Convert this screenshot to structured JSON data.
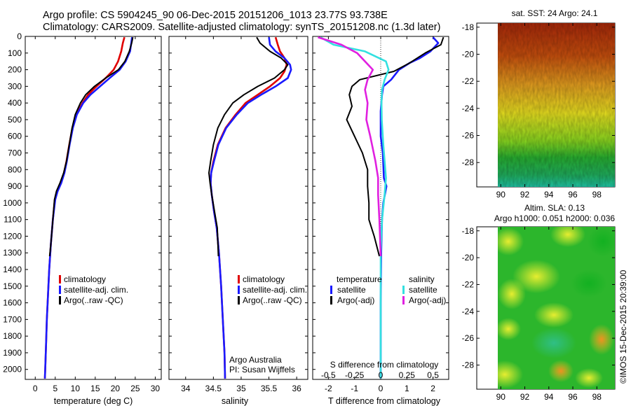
{
  "title_line1": "Argo profile: CS 5904245_90 06-Dec-2015 20151206_1013 23.77S 93.738E",
  "title_line2": "Climatology: CARS2009. Satellite-adjusted climatology: synTS_20151208.nc (1.3d later)",
  "credits": {
    "org": "Argo Australia",
    "pi": "PI: Susan Wijffels",
    "imos": "©IMOS 15-Dec-2015 20:39:00"
  },
  "colors": {
    "climatology": "#e00000",
    "satellite": "#1a1aff",
    "argo": "#000000",
    "salinity_satellite": "#33e0e0",
    "salinity_argo": "#e020e0"
  },
  "chart_data": [
    {
      "type": "line",
      "name": "temperature-profile",
      "xlabel": "temperature (deg C)",
      "ylabel": "",
      "xlim": [
        -2.5,
        31.5
      ],
      "ylim": [
        2060,
        0
      ],
      "xticks": [
        "0",
        "5",
        "10",
        "15",
        "20",
        "25",
        "30"
      ],
      "yticks": [
        "0",
        "100",
        "200",
        "300",
        "400",
        "500",
        "600",
        "700",
        "800",
        "900",
        "1000",
        "1100",
        "1200",
        "1300",
        "1400",
        "1500",
        "1600",
        "1700",
        "1800",
        "1900",
        "2000"
      ],
      "legend": [
        "climatology",
        "satellite-adj. clim.",
        "Argo(..raw -QC)"
      ],
      "series": [
        {
          "name": "climatology",
          "color_key": "climatology",
          "points": [
            [
              22.3,
              5
            ],
            [
              21.9,
              40
            ],
            [
              21.5,
              90
            ],
            [
              20.7,
              150
            ],
            [
              19.6,
              200
            ],
            [
              17.6,
              250
            ],
            [
              15.3,
              300
            ],
            [
              13.2,
              350
            ],
            [
              11.8,
              400
            ],
            [
              10.3,
              470
            ],
            [
              9.3,
              550
            ],
            [
              8.5,
              650
            ],
            [
              7.8,
              750
            ],
            [
              7.2,
              820
            ],
            [
              6.4,
              880
            ],
            [
              5.5,
              930
            ],
            [
              4.9,
              980
            ],
            [
              4.4,
              1100
            ],
            [
              3.9,
              1250
            ],
            [
              3.5,
              1400
            ],
            [
              3.2,
              1550
            ],
            [
              2.9,
              1700
            ],
            [
              2.7,
              1850
            ],
            [
              2.5,
              2000
            ],
            [
              2.4,
              2055
            ]
          ]
        },
        {
          "name": "satellite-adj. clim.",
          "color_key": "satellite",
          "points": [
            [
              24.2,
              5
            ],
            [
              24.0,
              40
            ],
            [
              23.7,
              90
            ],
            [
              22.6,
              150
            ],
            [
              21.1,
              200
            ],
            [
              18.6,
              250
            ],
            [
              16.2,
              300
            ],
            [
              13.8,
              350
            ],
            [
              12.0,
              400
            ],
            [
              10.4,
              470
            ],
            [
              9.4,
              550
            ],
            [
              8.6,
              650
            ],
            [
              7.9,
              750
            ],
            [
              7.3,
              820
            ],
            [
              6.5,
              880
            ],
            [
              5.6,
              930
            ],
            [
              5.0,
              980
            ],
            [
              4.4,
              1100
            ],
            [
              3.9,
              1250
            ],
            [
              3.5,
              1400
            ],
            [
              3.2,
              1550
            ],
            [
              2.9,
              1700
            ],
            [
              2.7,
              1850
            ],
            [
              2.5,
              2000
            ],
            [
              2.4,
              2055
            ]
          ]
        },
        {
          "name": "Argo(..raw -QC)",
          "color_key": "argo",
          "points": [
            [
              24.4,
              5
            ],
            [
              24.1,
              40
            ],
            [
              23.5,
              90
            ],
            [
              22.4,
              150
            ],
            [
              20.8,
              200
            ],
            [
              17.6,
              250
            ],
            [
              14.8,
              300
            ],
            [
              12.6,
              350
            ],
            [
              11.3,
              400
            ],
            [
              10.0,
              470
            ],
            [
              9.2,
              550
            ],
            [
              8.5,
              650
            ],
            [
              7.8,
              750
            ],
            [
              7.1,
              820
            ],
            [
              6.2,
              880
            ],
            [
              5.3,
              930
            ],
            [
              4.8,
              980
            ],
            [
              4.4,
              1100
            ],
            [
              3.9,
              1250
            ],
            [
              3.6,
              1320
            ]
          ]
        }
      ]
    },
    {
      "type": "line",
      "name": "salinity-profile",
      "xlabel": "salinity",
      "xlim": [
        33.7,
        36.2
      ],
      "ylim": [
        2060,
        0
      ],
      "xticks": [
        "34",
        "34.5",
        "35",
        "35.5",
        "36"
      ],
      "legend": [
        "climatology",
        "satellite-adj. clim.",
        "Argo(..raw -QC)"
      ],
      "series": [
        {
          "name": "climatology",
          "color_key": "climatology",
          "points": [
            [
              35.62,
              5
            ],
            [
              35.66,
              50
            ],
            [
              35.7,
              90
            ],
            [
              35.78,
              130
            ],
            [
              35.82,
              170
            ],
            [
              35.78,
              210
            ],
            [
              35.7,
              250
            ],
            [
              35.52,
              300
            ],
            [
              35.3,
              350
            ],
            [
              35.08,
              400
            ],
            [
              34.9,
              470
            ],
            [
              34.72,
              550
            ],
            [
              34.58,
              650
            ],
            [
              34.5,
              750
            ],
            [
              34.46,
              820
            ],
            [
              34.45,
              880
            ],
            [
              34.47,
              950
            ],
            [
              34.51,
              1050
            ],
            [
              34.56,
              1150
            ],
            [
              34.6,
              1300
            ],
            [
              34.64,
              1500
            ],
            [
              34.67,
              1700
            ],
            [
              34.7,
              1900
            ],
            [
              34.71,
              2055
            ]
          ]
        },
        {
          "name": "satellite-adj. clim.",
          "color_key": "satellite",
          "points": [
            [
              35.5,
              5
            ],
            [
              35.52,
              50
            ],
            [
              35.62,
              90
            ],
            [
              35.78,
              130
            ],
            [
              35.88,
              170
            ],
            [
              35.9,
              200
            ],
            [
              35.84,
              250
            ],
            [
              35.62,
              300
            ],
            [
              35.36,
              350
            ],
            [
              35.12,
              400
            ],
            [
              34.92,
              470
            ],
            [
              34.73,
              550
            ],
            [
              34.59,
              650
            ],
            [
              34.51,
              750
            ],
            [
              34.46,
              820
            ],
            [
              34.45,
              880
            ],
            [
              34.47,
              950
            ],
            [
              34.51,
              1050
            ],
            [
              34.56,
              1150
            ],
            [
              34.6,
              1300
            ],
            [
              34.64,
              1500
            ],
            [
              34.67,
              1700
            ],
            [
              34.7,
              1900
            ],
            [
              34.71,
              2055
            ]
          ]
        },
        {
          "name": "Argo(..raw -QC)",
          "color_key": "argo",
          "points": [
            [
              35.28,
              5
            ],
            [
              35.34,
              40
            ],
            [
              35.52,
              90
            ],
            [
              35.72,
              130
            ],
            [
              35.84,
              170
            ],
            [
              35.78,
              200
            ],
            [
              35.6,
              250
            ],
            [
              35.3,
              300
            ],
            [
              35.05,
              350
            ],
            [
              34.85,
              400
            ],
            [
              34.7,
              470
            ],
            [
              34.58,
              550
            ],
            [
              34.5,
              650
            ],
            [
              34.45,
              750
            ],
            [
              34.42,
              820
            ],
            [
              34.44,
              880
            ],
            [
              34.47,
              950
            ],
            [
              34.52,
              1050
            ],
            [
              34.57,
              1150
            ],
            [
              34.59,
              1320
            ]
          ]
        }
      ]
    },
    {
      "type": "line",
      "name": "difference-from-climatology",
      "xlabel": "T difference from climatology",
      "xlabel_top": "S difference from climatology",
      "xlim": [
        -2.6,
        2.6
      ],
      "ylim": [
        2060,
        0
      ],
      "xticks": [
        "-2",
        "-1",
        "0",
        "1",
        "2"
      ],
      "xticks_top": [
        "-0.5",
        "-0.25",
        "0",
        "0.25",
        "0.5"
      ],
      "legend_temperature": "temperature",
      "legend_salinity": "salinity",
      "legend_items": [
        "satellite",
        "Argo(-adj)",
        "satellite",
        "Argo(-adj)"
      ],
      "series": [
        {
          "name": "temperature satellite",
          "color_key": "satellite",
          "points": [
            [
              2.0,
              5
            ],
            [
              2.2,
              40
            ],
            [
              1.9,
              90
            ],
            [
              1.5,
              130
            ],
            [
              1.1,
              160
            ],
            [
              0.7,
              200
            ],
            [
              0.4,
              260
            ],
            [
              0.1,
              300
            ],
            [
              0.05,
              350
            ],
            [
              0.0,
              450
            ],
            [
              0.0,
              600
            ],
            [
              0.08,
              700
            ],
            [
              0.12,
              850
            ],
            [
              0.22,
              900
            ],
            [
              0.1,
              1000
            ],
            [
              0.05,
              1100
            ],
            [
              0.02,
              1300
            ],
            [
              0.0,
              1600
            ],
            [
              0.0,
              2055
            ]
          ]
        },
        {
          "name": "temperature Argo",
          "color_key": "argo",
          "points": [
            [
              2.4,
              5
            ],
            [
              2.3,
              50
            ],
            [
              1.7,
              100
            ],
            [
              1.1,
              160
            ],
            [
              0.5,
              210
            ],
            [
              -0.8,
              260
            ],
            [
              -1.1,
              300
            ],
            [
              -1.2,
              350
            ],
            [
              -1.1,
              420
            ],
            [
              -1.3,
              500
            ],
            [
              -1.0,
              600
            ],
            [
              -0.7,
              700
            ],
            [
              -0.5,
              800
            ],
            [
              -0.5,
              900
            ],
            [
              -0.45,
              1000
            ],
            [
              -0.45,
              1100
            ],
            [
              -0.25,
              1200
            ],
            [
              -0.05,
              1320
            ]
          ]
        },
        {
          "name": "salinity satellite",
          "color_key": "salinity_satellite",
          "points": [
            [
              -2.3,
              5
            ],
            [
              -1.8,
              50
            ],
            [
              -0.6,
              90
            ],
            [
              0.2,
              150
            ],
            [
              0.3,
              200
            ],
            [
              0.15,
              260
            ],
            [
              0.05,
              320
            ],
            [
              0.03,
              400
            ],
            [
              0.04,
              500
            ],
            [
              0.1,
              650
            ],
            [
              0.15,
              750
            ],
            [
              0.2,
              850
            ],
            [
              0.15,
              950
            ],
            [
              0.05,
              1100
            ],
            [
              0.0,
              1300
            ],
            [
              0.0,
              1600
            ],
            [
              0.0,
              2055
            ]
          ]
        },
        {
          "name": "salinity Argo",
          "color_key": "salinity_argo",
          "points": [
            [
              -2.4,
              5
            ],
            [
              -1.5,
              50
            ],
            [
              -0.9,
              100
            ],
            [
              -0.6,
              150
            ],
            [
              -0.3,
              200
            ],
            [
              -0.5,
              260
            ],
            [
              -0.6,
              320
            ],
            [
              -0.5,
              400
            ],
            [
              -0.55,
              500
            ],
            [
              -0.4,
              600
            ],
            [
              -0.2,
              750
            ],
            [
              -0.1,
              850
            ],
            [
              -0.1,
              950
            ],
            [
              -0.05,
              1100
            ],
            [
              0.0,
              1320
            ]
          ]
        }
      ]
    },
    {
      "type": "heatmap",
      "name": "satellite-sst-map",
      "title": "sat. SST: 24  Argo: 24.1",
      "xlim": [
        88,
        99.5
      ],
      "ylim": [
        -29.8,
        -17.7
      ],
      "xticks": [
        "90",
        "92",
        "94",
        "96",
        "98"
      ],
      "yticks": [
        "-18",
        "-20",
        "-22",
        "-24",
        "-26",
        "-28"
      ]
    },
    {
      "type": "heatmap",
      "name": "altimetry-sla-map",
      "title_line1": "Altim. SLA: 0.13",
      "title_line2": "Argo h1000: 0.051  h2000: 0.036",
      "xlim": [
        88,
        99.5
      ],
      "ylim": [
        -29.8,
        -17.7
      ],
      "xticks": [
        "90",
        "92",
        "94",
        "96",
        "98"
      ],
      "yticks": [
        "-18",
        "-20",
        "-22",
        "-24",
        "-26",
        "-28"
      ]
    }
  ]
}
